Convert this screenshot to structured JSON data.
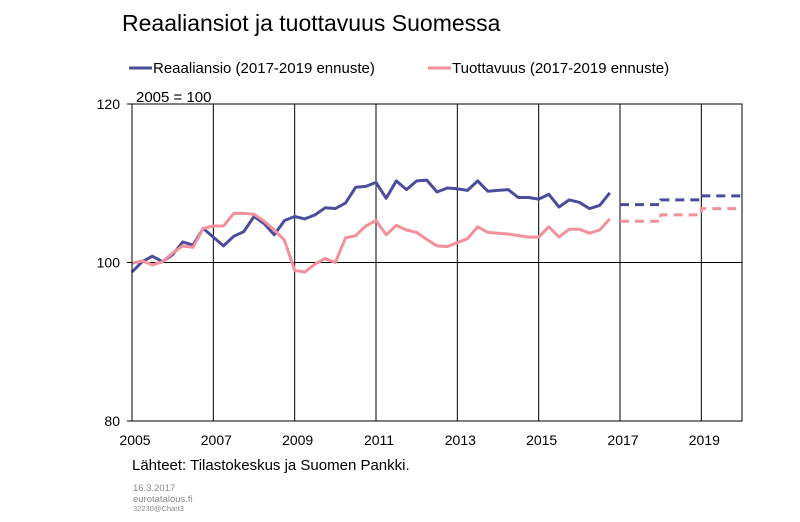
{
  "chart_data": {
    "type": "line",
    "title": "Reaaliansiot ja tuottavuus Suomessa",
    "subtitle": "2005 = 100",
    "xlim": [
      2005,
      2020
    ],
    "ylim": [
      80,
      120
    ],
    "yticks": [
      80,
      100,
      120
    ],
    "xticks": [
      "2005",
      "2007",
      "2009",
      "2011",
      "2013",
      "2015",
      "2017",
      "2019"
    ],
    "legend_position": "top",
    "series": [
      {
        "name": "Reaaliansio (2017-2019 ennuste)",
        "color": "#4b4d9c",
        "style": "solid",
        "x": [
          2005.0,
          2005.25,
          2005.5,
          2005.75,
          2006.0,
          2006.25,
          2006.5,
          2006.75,
          2007.0,
          2007.25,
          2007.5,
          2007.75,
          2008.0,
          2008.25,
          2008.5,
          2008.75,
          2009.0,
          2009.25,
          2009.5,
          2009.75,
          2010.0,
          2010.25,
          2010.5,
          2010.75,
          2011.0,
          2011.25,
          2011.5,
          2011.75,
          2012.0,
          2012.25,
          2012.5,
          2012.75,
          2013.0,
          2013.25,
          2013.5,
          2013.75,
          2014.0,
          2014.25,
          2014.5,
          2014.75,
          2015.0,
          2015.25,
          2015.5,
          2015.75,
          2016.0,
          2016.25,
          2016.5,
          2016.75
        ],
        "y": [
          98.8,
          100.1,
          100.8,
          100.1,
          101.0,
          102.6,
          102.2,
          104.3,
          103.2,
          102.1,
          103.3,
          103.9,
          105.8,
          104.9,
          103.5,
          105.3,
          105.8,
          105.5,
          106.0,
          106.9,
          106.8,
          107.5,
          109.5,
          109.6,
          110.1,
          108.1,
          110.3,
          109.2,
          110.3,
          110.4,
          108.9,
          109.4,
          109.3,
          109.1,
          110.3,
          109.0,
          109.1,
          109.2,
          108.2,
          108.2,
          108.0,
          108.6,
          107.0,
          107.9,
          107.6,
          106.8,
          107.2,
          108.8
        ]
      },
      {
        "name": "Tuottavuus (2017-2019 ennuste)",
        "color": "#f2919b",
        "style": "solid",
        "x": [
          2005.0,
          2005.25,
          2005.5,
          2005.75,
          2006.0,
          2006.25,
          2006.5,
          2006.75,
          2007.0,
          2007.25,
          2007.5,
          2007.75,
          2008.0,
          2008.25,
          2008.5,
          2008.75,
          2009.0,
          2009.25,
          2009.5,
          2009.75,
          2010.0,
          2010.25,
          2010.5,
          2010.75,
          2011.0,
          2011.25,
          2011.5,
          2011.75,
          2012.0,
          2012.25,
          2012.5,
          2012.75,
          2013.0,
          2013.25,
          2013.5,
          2013.75,
          2014.0,
          2014.25,
          2014.5,
          2014.75,
          2015.0,
          2015.25,
          2015.5,
          2015.75,
          2016.0,
          2016.25,
          2016.5,
          2016.75
        ],
        "y": [
          99.9,
          100.2,
          99.7,
          100.1,
          101.2,
          102.1,
          101.9,
          104.3,
          104.6,
          104.6,
          106.2,
          106.2,
          106.1,
          105.2,
          104.1,
          102.8,
          99.0,
          98.8,
          99.8,
          100.5,
          100.0,
          103.1,
          103.4,
          104.6,
          105.3,
          103.5,
          104.7,
          104.1,
          103.8,
          102.9,
          102.1,
          102.0,
          102.5,
          103.0,
          104.5,
          103.8,
          103.7,
          103.6,
          103.4,
          103.2,
          103.2,
          104.5,
          103.2,
          104.2,
          104.2,
          103.7,
          104.1,
          105.5
        ]
      },
      {
        "color": "#4b4d9c",
        "style": "dashed",
        "x": [
          2017.0,
          2018.0,
          2018.0,
          2019.0,
          2019.0,
          2020.0
        ],
        "y": [
          107.3,
          107.3,
          107.9,
          107.9,
          108.4,
          108.4
        ]
      },
      {
        "color": "#f2919b",
        "style": "dashed",
        "x": [
          2017.0,
          2018.0,
          2018.0,
          2019.0,
          2019.0,
          2020.0
        ],
        "y": [
          105.2,
          105.2,
          106.0,
          106.0,
          106.8,
          106.8
        ]
      }
    ],
    "source": "Lähteet: Tilastokeskus ja Suomen Pankki.",
    "meta": [
      "16.3.2017",
      "eurotatalous.fi",
      "32230@Chart3"
    ]
  }
}
